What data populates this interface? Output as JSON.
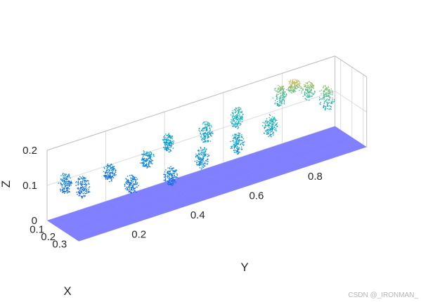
{
  "chart_data": {
    "type": "scatter",
    "title": "",
    "xlabel": "X",
    "ylabel": "Y",
    "zlabel": "Z",
    "x_ticks": [
      "0.1",
      "0.2",
      "0.3"
    ],
    "y_ticks": [
      "0.2",
      "0.4",
      "0.6",
      "0.8"
    ],
    "z_ticks": [
      "0",
      "0.1",
      "0.2"
    ],
    "xlim": [
      0.05,
      0.33
    ],
    "ylim": [
      0.0,
      0.98
    ],
    "zlim": [
      0,
      0.2
    ],
    "grid": true,
    "colormap": "parula",
    "ground_plane": {
      "z": 0,
      "color": "#7777ff"
    },
    "point_cloud_clusters": [
      {
        "y": 0.05,
        "x": 0.08,
        "z": 0.1,
        "spread": [
          0.03,
          0.04,
          0.05
        ]
      },
      {
        "y": 0.1,
        "x": 0.1,
        "z": 0.08,
        "spread": [
          0.04,
          0.04,
          0.05
        ]
      },
      {
        "y": 0.2,
        "x": 0.08,
        "z": 0.09,
        "spread": [
          0.03,
          0.04,
          0.04
        ]
      },
      {
        "y": 0.22,
        "x": 0.22,
        "z": 0.08,
        "spread": [
          0.04,
          0.04,
          0.04
        ]
      },
      {
        "y": 0.32,
        "x": 0.1,
        "z": 0.1,
        "spread": [
          0.03,
          0.04,
          0.04
        ]
      },
      {
        "y": 0.35,
        "x": 0.23,
        "z": 0.07,
        "spread": [
          0.04,
          0.04,
          0.04
        ]
      },
      {
        "y": 0.4,
        "x": 0.08,
        "z": 0.12,
        "spread": [
          0.03,
          0.03,
          0.04
        ]
      },
      {
        "y": 0.46,
        "x": 0.22,
        "z": 0.09,
        "spread": [
          0.04,
          0.04,
          0.05
        ]
      },
      {
        "y": 0.52,
        "x": 0.1,
        "z": 0.12,
        "spread": [
          0.03,
          0.04,
          0.05
        ]
      },
      {
        "y": 0.58,
        "x": 0.22,
        "z": 0.1,
        "spread": [
          0.04,
          0.04,
          0.05
        ]
      },
      {
        "y": 0.63,
        "x": 0.09,
        "z": 0.13,
        "spread": [
          0.03,
          0.04,
          0.05
        ]
      },
      {
        "y": 0.7,
        "x": 0.2,
        "z": 0.11,
        "spread": [
          0.04,
          0.04,
          0.05
        ]
      },
      {
        "y": 0.78,
        "x": 0.08,
        "z": 0.15,
        "spread": [
          0.03,
          0.04,
          0.05
        ]
      },
      {
        "y": 0.82,
        "x": 0.1,
        "z": 0.17,
        "spread": [
          0.03,
          0.04,
          0.03
        ]
      },
      {
        "y": 0.86,
        "x": 0.12,
        "z": 0.15,
        "spread": [
          0.04,
          0.04,
          0.04
        ]
      },
      {
        "y": 0.9,
        "x": 0.18,
        "z": 0.13,
        "spread": [
          0.05,
          0.04,
          0.06
        ]
      }
    ]
  },
  "watermark": "CSDN @_IRONMAN_"
}
